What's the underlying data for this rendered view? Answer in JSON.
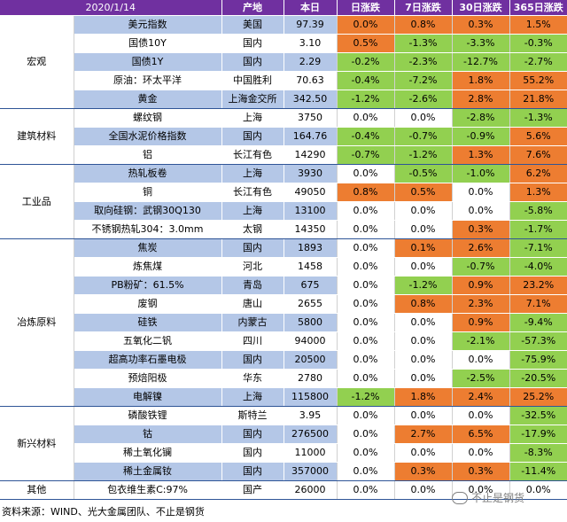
{
  "header": {
    "date": "2020/1/14",
    "origin": "产地",
    "price": "本日",
    "d1": "日涨跌",
    "d7": "7日涨跌",
    "d30": "30日涨跌",
    "d365": "365日涨跌"
  },
  "groups": [
    {
      "category": "宏观",
      "rows": [
        {
          "name": "美元指数",
          "origin": "美国",
          "price": "97.39",
          "d1": "0.0%",
          "d7": "0.8%",
          "d30": "0.3%",
          "d365": "1.5%",
          "c": [
            "pos",
            "pos",
            "pos",
            "pos"
          ]
        },
        {
          "name": "国债10Y",
          "origin": "国内",
          "price": "3.10",
          "d1": "0.5%",
          "d7": "-1.3%",
          "d30": "-3.3%",
          "d365": "-0.3%",
          "c": [
            "pos",
            "neg",
            "neg",
            "neg"
          ]
        },
        {
          "name": "国债1Y",
          "origin": "国内",
          "price": "2.29",
          "d1": "-0.2%",
          "d7": "-2.3%",
          "d30": "-12.7%",
          "d365": "-2.7%",
          "c": [
            "neg",
            "neg",
            "neg",
            "neg"
          ]
        },
        {
          "name": "原油：环太平洋",
          "origin": "中国胜利",
          "price": "70.63",
          "d1": "-0.4%",
          "d7": "-7.2%",
          "d30": "1.8%",
          "d365": "55.2%",
          "c": [
            "neg",
            "neg",
            "pos",
            "pos"
          ]
        },
        {
          "name": "黄金",
          "origin": "上海金交所",
          "price": "342.50",
          "d1": "-1.2%",
          "d7": "-2.6%",
          "d30": "2.8%",
          "d365": "21.8%",
          "c": [
            "neg",
            "neg",
            "pos",
            "pos"
          ]
        }
      ]
    },
    {
      "category": "建筑材料",
      "rows": [
        {
          "name": "螺纹钢",
          "origin": "上海",
          "price": "3750",
          "d1": "0.0%",
          "d7": "0.0%",
          "d30": "-2.8%",
          "d365": "-1.3%",
          "c": [
            "zero",
            "zero",
            "neg",
            "neg"
          ]
        },
        {
          "name": "全国水泥价格指数",
          "origin": "国内",
          "price": "164.76",
          "d1": "-0.4%",
          "d7": "-0.7%",
          "d30": "-0.9%",
          "d365": "5.6%",
          "c": [
            "neg",
            "neg",
            "neg",
            "pos"
          ]
        },
        {
          "name": "铝",
          "origin": "长江有色",
          "price": "14290",
          "d1": "-0.7%",
          "d7": "-1.2%",
          "d30": "1.3%",
          "d365": "7.6%",
          "c": [
            "neg",
            "neg",
            "pos",
            "pos"
          ]
        }
      ]
    },
    {
      "category": "工业品",
      "rows": [
        {
          "name": "热轧板卷",
          "origin": "上海",
          "price": "3930",
          "d1": "0.0%",
          "d7": "-0.5%",
          "d30": "-1.0%",
          "d365": "6.2%",
          "c": [
            "zero",
            "neg",
            "neg",
            "pos"
          ]
        },
        {
          "name": "铜",
          "origin": "长江有色",
          "price": "49050",
          "d1": "0.8%",
          "d7": "0.5%",
          "d30": "0.0%",
          "d365": "1.3%",
          "c": [
            "pos",
            "pos",
            "zero",
            "pos"
          ]
        },
        {
          "name": "取向硅钢：武钢30Q130",
          "origin": "上海",
          "price": "13100",
          "d1": "0.0%",
          "d7": "0.0%",
          "d30": "0.0%",
          "d365": "-5.8%",
          "c": [
            "zero",
            "zero",
            "zero",
            "neg"
          ]
        },
        {
          "name": "不锈钢热轧304：3.0mm",
          "origin": "太钢",
          "price": "14350",
          "d1": "0.0%",
          "d7": "0.0%",
          "d30": "0.3%",
          "d365": "-1.7%",
          "c": [
            "zero",
            "zero",
            "pos",
            "neg"
          ]
        }
      ]
    },
    {
      "category": "冶炼原料",
      "rows": [
        {
          "name": "焦炭",
          "origin": "国内",
          "price": "1893",
          "d1": "0.0%",
          "d7": "0.1%",
          "d30": "2.6%",
          "d365": "-7.1%",
          "c": [
            "zero",
            "pos",
            "pos",
            "neg"
          ]
        },
        {
          "name": "炼焦煤",
          "origin": "河北",
          "price": "1458",
          "d1": "0.0%",
          "d7": "0.0%",
          "d30": "-0.7%",
          "d365": "-4.0%",
          "c": [
            "zero",
            "zero",
            "neg",
            "neg"
          ]
        },
        {
          "name": "PB粉矿：61.5%",
          "origin": "青岛",
          "price": "675",
          "d1": "0.0%",
          "d7": "-1.2%",
          "d30": "0.9%",
          "d365": "23.2%",
          "c": [
            "zero",
            "neg",
            "pos",
            "pos"
          ]
        },
        {
          "name": "废钢",
          "origin": "唐山",
          "price": "2655",
          "d1": "0.0%",
          "d7": "0.8%",
          "d30": "2.3%",
          "d365": "7.1%",
          "c": [
            "zero",
            "pos",
            "pos",
            "pos"
          ]
        },
        {
          "name": "硅铁",
          "origin": "内蒙古",
          "price": "5800",
          "d1": "0.0%",
          "d7": "0.0%",
          "d30": "0.9%",
          "d365": "-9.4%",
          "c": [
            "zero",
            "zero",
            "pos",
            "neg"
          ]
        },
        {
          "name": "五氧化二钒",
          "origin": "四川",
          "price": "94000",
          "d1": "0.0%",
          "d7": "0.0%",
          "d30": "-2.1%",
          "d365": "-57.3%",
          "c": [
            "zero",
            "zero",
            "neg",
            "neg"
          ]
        },
        {
          "name": "超高功率石墨电极",
          "origin": "国内",
          "price": "20500",
          "d1": "0.0%",
          "d7": "0.0%",
          "d30": "0.0%",
          "d365": "-75.9%",
          "c": [
            "zero",
            "zero",
            "zero",
            "neg"
          ]
        },
        {
          "name": "预焙阳极",
          "origin": "华东",
          "price": "2780",
          "d1": "0.0%",
          "d7": "0.0%",
          "d30": "-2.5%",
          "d365": "-20.5%",
          "c": [
            "zero",
            "zero",
            "neg",
            "neg"
          ]
        },
        {
          "name": "电解镍",
          "origin": "上海",
          "price": "115800",
          "d1": "-1.2%",
          "d7": "1.8%",
          "d30": "2.4%",
          "d365": "25.2%",
          "c": [
            "neg",
            "pos",
            "pos",
            "pos"
          ]
        }
      ]
    },
    {
      "category": "新兴材料",
      "rows": [
        {
          "name": "磷酸铁锂",
          "origin": "斯特兰",
          "price": "3.95",
          "d1": "0.0%",
          "d7": "0.0%",
          "d30": "0.0%",
          "d365": "-32.5%",
          "c": [
            "zero",
            "zero",
            "zero",
            "neg"
          ]
        },
        {
          "name": "钴",
          "origin": "国内",
          "price": "276500",
          "d1": "0.0%",
          "d7": "2.7%",
          "d30": "6.5%",
          "d365": "-17.9%",
          "c": [
            "zero",
            "pos",
            "pos",
            "neg"
          ]
        },
        {
          "name": "稀土氧化镧",
          "origin": "国内",
          "price": "11000",
          "d1": "0.0%",
          "d7": "0.0%",
          "d30": "0.0%",
          "d365": "-8.3%",
          "c": [
            "zero",
            "zero",
            "zero",
            "neg"
          ]
        },
        {
          "name": "稀土金属钕",
          "origin": "国内",
          "price": "357000",
          "d1": "0.0%",
          "d7": "0.3%",
          "d30": "0.3%",
          "d365": "-11.4%",
          "c": [
            "zero",
            "pos",
            "pos",
            "neg"
          ]
        }
      ]
    },
    {
      "category": "其他",
      "rows": [
        {
          "name": "包衣维生素C:97%",
          "origin": "国产",
          "price": "26000",
          "d1": "0.0%",
          "d7": "0.0%",
          "d30": "0.0%",
          "d365": "0.0%",
          "c": [
            "zero",
            "zero",
            "zero",
            "zero"
          ]
        }
      ]
    }
  ],
  "footer": "资料来源：WIND、光大金属团队、不止是钢货",
  "watermark": "不止是钢货",
  "colors": {
    "header": "#7030a0",
    "up": "#ed7d31",
    "down": "#92d050",
    "band": "#b4c7e7"
  }
}
